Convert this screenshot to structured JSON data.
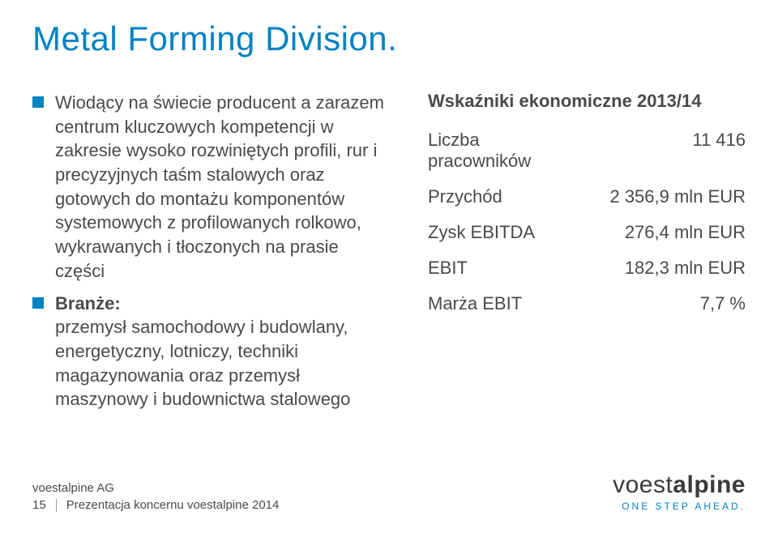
{
  "colors": {
    "accent": "#0082c4",
    "text": "#4a4a4a",
    "background": "#ffffff"
  },
  "title": "Metal Forming Division.",
  "bullets": [
    {
      "label": "",
      "text": "Wiodący na świecie producent a zarazem centrum kluczowych kompetencji w zakresie wysoko rozwiniętych profili, rur i precyzyjnych taśm stalowych oraz gotowych do montażu komponentów systemowych z profilowanych rolkowo, wykrawanych i tłoczonych na prasie części"
    },
    {
      "label": "Branże:",
      "text": "przemysł samochodowy i budowlany, energetyczny, lotniczy, techniki magazynowania oraz przemysł maszynowy i budownictwa stalowego"
    }
  ],
  "stats": {
    "heading": "Wskaźniki ekonomiczne 2013/14",
    "rows": [
      {
        "label": "Liczba\npracowników",
        "value": "11 416"
      },
      {
        "label": "Przychód",
        "value": "2 356,9 mln EUR"
      },
      {
        "label": "Zysk EBITDA",
        "value": "276,4 mln EUR"
      },
      {
        "label": "EBIT",
        "value": "182,3 mln EUR"
      },
      {
        "label": "Marża EBIT",
        "value": "7,7 %"
      }
    ]
  },
  "footer": {
    "company": "voestalpine AG",
    "page": "15",
    "presentation": "Prezentacja koncernu voestalpine 2014"
  },
  "logo": {
    "word_light": "voest",
    "word_bold": "alpine",
    "tagline": "ONE STEP AHEAD."
  }
}
